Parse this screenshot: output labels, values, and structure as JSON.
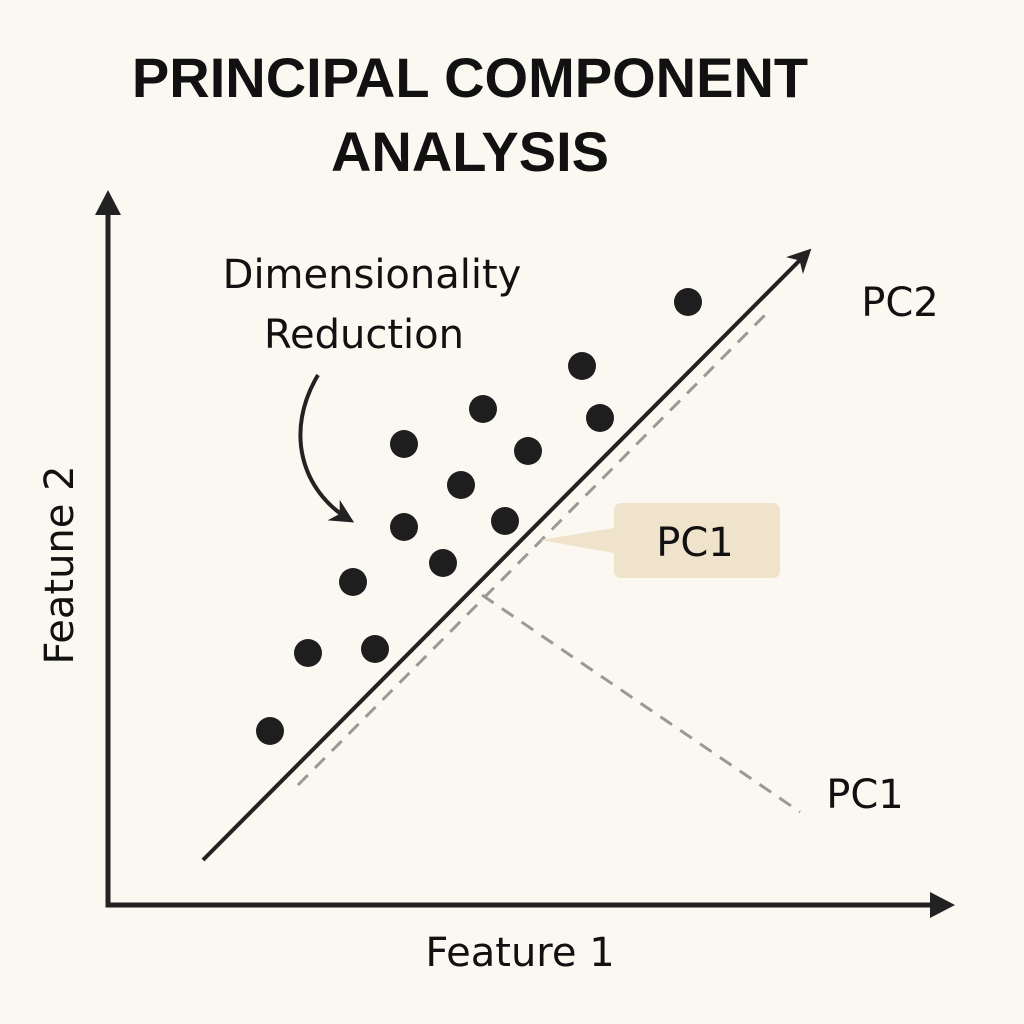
{
  "header": {
    "title_lines": [
      "PRINCIPAL COMPONENT",
      "ANALYSIS"
    ]
  },
  "annotation": {
    "lines": [
      "Dimensionality",
      "Reduction"
    ]
  },
  "labels": {
    "pc2": "PC2",
    "pc1_callout": "PC1",
    "pc1": "PC1"
  },
  "axes": {
    "x_label": "Feature 1",
    "y_label": "Featune 2"
  }
}
